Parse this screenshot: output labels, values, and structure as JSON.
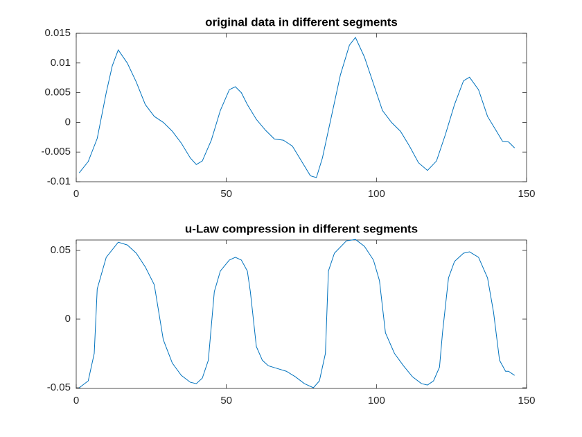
{
  "chart_data": [
    {
      "type": "line",
      "title": "original data in different segments",
      "color": "#0072bd",
      "x": [
        1,
        4,
        7,
        10,
        12,
        14,
        17,
        20,
        23,
        26,
        29,
        32,
        35,
        38,
        40,
        42,
        45,
        48,
        51,
        53,
        55,
        57,
        60,
        63,
        66,
        69,
        72,
        75,
        78,
        80,
        82,
        85,
        88,
        91,
        93,
        96,
        99,
        102,
        105,
        108,
        111,
        114,
        117,
        120,
        123,
        126,
        129,
        131,
        134,
        137,
        140,
        142,
        144,
        146
      ],
      "values": [
        -0.0085,
        -0.0066,
        -0.0027,
        0.005,
        0.0095,
        0.0122,
        0.01,
        0.0068,
        0.003,
        0.001,
        0.0,
        -0.0015,
        -0.0035,
        -0.006,
        -0.0071,
        -0.0065,
        -0.003,
        0.002,
        0.0055,
        0.006,
        0.005,
        0.003,
        0.0005,
        -0.0013,
        -0.0028,
        -0.003,
        -0.004,
        -0.0065,
        -0.009,
        -0.0093,
        -0.006,
        0.001,
        0.008,
        0.013,
        0.0143,
        0.011,
        0.0065,
        0.002,
        0.0,
        -0.0015,
        -0.004,
        -0.0068,
        -0.0081,
        -0.0065,
        -0.002,
        0.003,
        0.007,
        0.0076,
        0.0055,
        0.001,
        -0.0015,
        -0.0032,
        -0.0033,
        -0.0043
      ],
      "xlim": [
        0,
        150
      ],
      "xticks": [
        0,
        50,
        100,
        150
      ],
      "ylim": [
        -0.01,
        0.015
      ],
      "yticks": [
        -0.01,
        -0.005,
        0,
        0.005,
        0.01,
        0.015
      ]
    },
    {
      "type": "line",
      "title": "u-Law compression in different segments",
      "color": "#0072bd",
      "x": [
        1,
        4,
        6,
        7,
        10,
        14,
        17,
        20,
        23,
        26,
        29,
        32,
        35,
        38,
        40,
        42,
        44,
        46,
        48,
        51,
        53,
        55,
        57,
        58,
        60,
        62,
        64,
        67,
        70,
        73,
        76,
        79,
        81,
        83,
        84,
        86,
        90,
        93,
        96,
        99,
        101,
        103,
        106,
        109,
        112,
        115,
        117,
        119,
        121,
        122,
        124,
        126,
        129,
        131,
        134,
        137,
        139,
        141,
        143,
        144,
        146
      ],
      "values": [
        -0.05,
        -0.045,
        -0.025,
        0.022,
        0.045,
        0.056,
        0.054,
        0.048,
        0.038,
        0.025,
        -0.015,
        -0.032,
        -0.041,
        -0.046,
        -0.047,
        -0.043,
        -0.03,
        0.02,
        0.035,
        0.043,
        0.045,
        0.043,
        0.035,
        0.02,
        -0.02,
        -0.03,
        -0.034,
        -0.036,
        -0.038,
        -0.042,
        -0.047,
        -0.05,
        -0.045,
        -0.025,
        0.035,
        0.048,
        0.057,
        0.058,
        0.053,
        0.043,
        0.028,
        -0.01,
        -0.025,
        -0.034,
        -0.042,
        -0.047,
        -0.048,
        -0.045,
        -0.035,
        -0.01,
        0.03,
        0.042,
        0.048,
        0.049,
        0.045,
        0.03,
        0.005,
        -0.03,
        -0.038,
        -0.038,
        -0.041
      ],
      "xlim": [
        0,
        150
      ],
      "xticks": [
        0,
        50,
        100,
        150
      ],
      "ylim": [
        -0.0505,
        0.0576
      ],
      "yticks": [
        -0.05,
        0,
        0.05
      ]
    }
  ]
}
